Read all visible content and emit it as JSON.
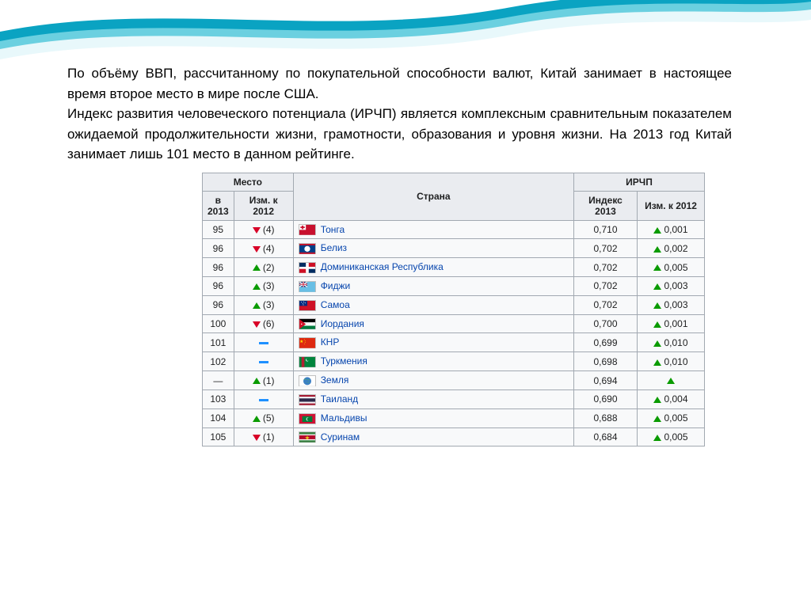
{
  "paragraph": "По объёму ВВП, рассчитанному по покупательной способности валют, Китай занимает в настоящее время второе место в мире после США.\nИндекс развития человеческого потенциала (ИРЧП) является комплексным сравнительным показателем ожидаемой продолжительности жизни, грамотности, образования и уровня жизни. На 2013 год Китай занимает лишь 101 место в данном рейтинге.",
  "table": {
    "headers": {
      "place_group": "Место",
      "country": "Страна",
      "hdi_group": "ИРЧП",
      "rank_col": "в 2013",
      "change_col": "Изм. к 2012",
      "index_col": "Индекс 2013",
      "index_change_col": "Изм. к 2012"
    },
    "colors": {
      "th_bg": "#eaecf0",
      "border": "#a2a9b1",
      "link": "#0645ad",
      "up": "#0a9b00",
      "down": "#d80027",
      "steady": "#1e90ff"
    },
    "rows": [
      {
        "rank": "95",
        "rank_dir": "down",
        "rank_delta": "(4)",
        "flag": "tonga",
        "country": "Тонга",
        "index": "0,710",
        "idx_dir": "up",
        "idx_delta": "0,001"
      },
      {
        "rank": "96",
        "rank_dir": "down",
        "rank_delta": "(4)",
        "flag": "belize",
        "country": "Белиз",
        "index": "0,702",
        "idx_dir": "up",
        "idx_delta": "0,002"
      },
      {
        "rank": "96",
        "rank_dir": "up",
        "rank_delta": "(2)",
        "flag": "domrep",
        "country": "Доминиканская Республика",
        "index": "0,702",
        "idx_dir": "up",
        "idx_delta": "0,005"
      },
      {
        "rank": "96",
        "rank_dir": "up",
        "rank_delta": "(3)",
        "flag": "fiji",
        "country": "Фиджи",
        "index": "0,702",
        "idx_dir": "up",
        "idx_delta": "0,003"
      },
      {
        "rank": "96",
        "rank_dir": "up",
        "rank_delta": "(3)",
        "flag": "samoa",
        "country": "Самоа",
        "index": "0,702",
        "idx_dir": "up",
        "idx_delta": "0,003"
      },
      {
        "rank": "100",
        "rank_dir": "down",
        "rank_delta": "(6)",
        "flag": "jordan",
        "country": "Иордания",
        "index": "0,700",
        "idx_dir": "up",
        "idx_delta": "0,001"
      },
      {
        "rank": "101",
        "rank_dir": "steady",
        "rank_delta": "",
        "flag": "china",
        "country": "КНР",
        "index": "0,699",
        "idx_dir": "up",
        "idx_delta": "0,010"
      },
      {
        "rank": "102",
        "rank_dir": "steady",
        "rank_delta": "",
        "flag": "turkmen",
        "country": "Туркмения",
        "index": "0,698",
        "idx_dir": "up",
        "idx_delta": "0,010"
      },
      {
        "rank": "—",
        "rank_dir": "up",
        "rank_delta": "(1)",
        "flag": "earth",
        "country": "Земля",
        "index": "0,694",
        "idx_dir": "up",
        "idx_delta": ""
      },
      {
        "rank": "103",
        "rank_dir": "steady",
        "rank_delta": "",
        "flag": "thailand",
        "country": "Таиланд",
        "index": "0,690",
        "idx_dir": "up",
        "idx_delta": "0,004"
      },
      {
        "rank": "104",
        "rank_dir": "up",
        "rank_delta": "(5)",
        "flag": "maldives",
        "country": "Мальдивы",
        "index": "0,688",
        "idx_dir": "up",
        "idx_delta": "0,005"
      },
      {
        "rank": "105",
        "rank_dir": "down",
        "rank_delta": "(1)",
        "flag": "suriname",
        "country": "Суринам",
        "index": "0,684",
        "idx_dir": "up",
        "idx_delta": "0,005"
      }
    ]
  },
  "flags": {
    "tonga": "<svg viewBox='0 0 22 14'><rect width='22' height='14' fill='#c8102e'/><rect width='9' height='7' fill='#fff'/><rect x='3.5' y='1' width='2' height='5' fill='#c8102e'/><rect x='1.5' y='2.5' width='6' height='2' fill='#c8102e'/></svg>",
    "belize": "<svg viewBox='0 0 22 14'><rect width='22' height='14' fill='#003f87'/><rect width='22' height='2' fill='#ce1126'/><rect y='12' width='22' height='2' fill='#ce1126'/><circle cx='11' cy='7' r='4' fill='#fff'/></svg>",
    "domrep": "<svg viewBox='0 0 22 14'><rect width='22' height='14' fill='#fff'/><rect width='9' height='5.5' fill='#002d62'/><rect x='13' width='9' height='5.5' fill='#ce1126'/><rect y='8.5' width='9' height='5.5' fill='#ce1126'/><rect x='13' y='8.5' width='9' height='5.5' fill='#002d62'/></svg>",
    "fiji": "<svg viewBox='0 0 22 14'><rect width='22' height='14' fill='#68bfe5'/><rect width='11' height='7' fill='#012169'/><path d='M0,0 L11,7 M11,0 L0,7' stroke='#fff' stroke-width='1.5'/><path d='M5.5,0 V7 M0,3.5 H11' stroke='#fff' stroke-width='2'/><path d='M5.5,0 V7 M0,3.5 H11' stroke='#c8102e' stroke-width='1'/></svg>",
    "samoa": "<svg viewBox='0 0 22 14'><rect width='22' height='14' fill='#ce1126'/><rect width='11' height='7' fill='#002b7f'/><circle cx='3' cy='2' r='0.6' fill='#fff'/><circle cx='6' cy='1.5' r='0.6' fill='#fff'/><circle cx='8' cy='3' r='0.6' fill='#fff'/><circle cx='5' cy='4' r='0.5' fill='#fff'/><circle cx='5.5' cy='5.5' r='0.6' fill='#fff'/></svg>",
    "jordan": "<svg viewBox='0 0 22 14'><rect width='22' height='4.67' fill='#000'/><rect y='4.67' width='22' height='4.67' fill='#fff'/><rect y='9.33' width='22' height='4.67' fill='#007a3d'/><path d='M0,0 L9,7 L0,14 Z' fill='#ce1126'/><circle cx='3' cy='7' r='0.8' fill='#fff'/></svg>",
    "china": "<svg viewBox='0 0 22 14'><rect width='22' height='14' fill='#de2910'/><path d='M3,2 l0.6,1.8 l1.9,0 l-1.5,1.1 l0.6,1.8 l-1.6,-1.1 l-1.6,1.1 l0.6,-1.8 l-1.5,-1.1 l1.9,0 z' fill='#ffde00'/><circle cx='7' cy='2' r='0.5' fill='#ffde00'/><circle cx='8' cy='4' r='0.5' fill='#ffde00'/><circle cx='8' cy='6' r='0.5' fill='#ffde00'/><circle cx='7' cy='8' r='0.5' fill='#ffde00'/></svg>",
    "turkmen": "<svg viewBox='0 0 22 14'><rect width='22' height='14' fill='#00843d'/><rect x='3' width='4' height='14' fill='#b22234'/><circle cx='11' cy='4' r='2' fill='#fff'/><circle cx='11.7' cy='3.6' r='1.8' fill='#00843d'/></svg>",
    "earth": "<svg viewBox='0 0 22 14'><rect width='22' height='14' fill='#fff'/><circle cx='11' cy='7' r='5.5' fill='#3a7fc4'/><path d='M6,5 q2,-2 5,0 q2,2 4,0' fill='#5bb85b' opacity='0.9'/><path d='M8,9 q1,-1 3,0 q2,1 3,-0.5' fill='#5bb85b' opacity='0.9'/></svg>",
    "thailand": "<svg viewBox='0 0 22 14'><rect width='22' height='14' fill='#a51931'/><rect y='2.33' width='22' height='9.33' fill='#f4f5f8'/><rect y='4.67' width='22' height='4.67' fill='#2d2a4a'/></svg>",
    "maldives": "<svg viewBox='0 0 22 14'><rect width='22' height='14' fill='#d21034'/><rect x='4' y='3' width='14' height='8' fill='#007e3a'/><circle cx='12' cy='7' r='2.5' fill='#fff'/><circle cx='12.8' cy='7' r='2.3' fill='#007e3a'/></svg>",
    "suriname": "<svg viewBox='0 0 22 14'><rect width='22' height='14' fill='#377e3f'/><rect y='2.8' width='22' height='8.4' fill='#fff'/><rect y='4.2' width='22' height='5.6' fill='#b40a2d'/><path d='M11,4.5 l0.8,2.3 l2.4,0 l-2,1.4 l0.8,2.3 l-2,-1.4 l-2,1.4 l0.8,-2.3 l-2,-1.4 l2.4,0 z' fill='#ecc81d'/></svg>"
  },
  "ribbon": {
    "color1": "#0aa3c2",
    "color2": "#6bd0e0",
    "color3": "#e8f8fb"
  }
}
